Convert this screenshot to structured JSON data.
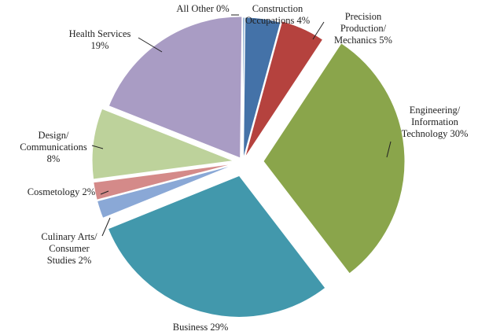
{
  "chart_data": {
    "type": "pie",
    "title": "",
    "slices": [
      {
        "label": "All Other",
        "value": 0,
        "display": "All Other 0%",
        "color": "#4a7fb5"
      },
      {
        "label": "Construction Occupations",
        "value": 4,
        "display": "Construction Occupations 4%",
        "color": "#4472a8"
      },
      {
        "label": "Precision Production/ Mechanics",
        "value": 5,
        "display": "Precision Production/ Mechanics 5%",
        "color": "#b5423e"
      },
      {
        "label": "Engineering/ Information Technology",
        "value": 30,
        "display": "Engineering/ Information Technology 30%",
        "color": "#8aa54b"
      },
      {
        "label": "Business",
        "value": 29,
        "display": "Business 29%",
        "color": "#4298ac"
      },
      {
        "label": "Culinary Arts/ Consumer Studies",
        "value": 2,
        "display": "Culinary Arts/ Consumer Studies 2%",
        "color": "#8aa8d6"
      },
      {
        "label": "Cosmetology",
        "value": 2,
        "display": "Cosmetology 2%",
        "color": "#d48a89"
      },
      {
        "label": "Design/ Communications",
        "value": 8,
        "display": "Design/ Communications 8%",
        "color": "#bdd29b"
      },
      {
        "label": "Health Services",
        "value": 19,
        "display": "Health Services 19%",
        "color": "#a99cc4"
      }
    ]
  }
}
